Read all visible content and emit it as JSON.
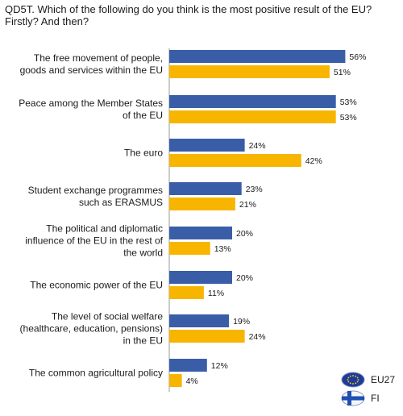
{
  "chart_data": {
    "type": "bar",
    "orientation": "horizontal",
    "title": "QD5T. Which of the following do you think is the most positive result of the EU? Firstly? And then?",
    "title_lines": [
      "QD5T. Which of the following do you think is the most positive result of the EU?",
      "Firstly? And then?"
    ],
    "categories": [
      [
        "The free movement of people,",
        "goods and services within the EU"
      ],
      [
        "Peace among the Member States",
        "of the EU"
      ],
      [
        "The euro"
      ],
      [
        "Student exchange programmes",
        "such as ERASMUS"
      ],
      [
        "The political and diplomatic",
        "influence of the EU in the rest of",
        "the world"
      ],
      [
        "The economic power of the EU"
      ],
      [
        "The level of social welfare",
        "(healthcare, education, pensions)",
        "in the EU"
      ],
      [
        "The common agricultural policy"
      ]
    ],
    "series": [
      {
        "name": "EU27",
        "color": "#3a5da8",
        "values": [
          56,
          53,
          24,
          23,
          20,
          20,
          19,
          12
        ]
      },
      {
        "name": "FI",
        "color": "#f7b500",
        "values": [
          51,
          53,
          42,
          21,
          13,
          11,
          24,
          4
        ]
      }
    ],
    "value_suffix": "%",
    "xlim": [
      0,
      60
    ],
    "grid": false,
    "legend_position": "bottom-right",
    "legend_icons": [
      "eu-flag-icon",
      "finland-flag-icon"
    ]
  }
}
